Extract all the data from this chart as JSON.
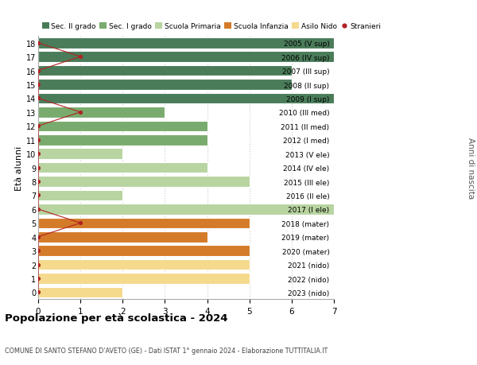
{
  "ages": [
    18,
    17,
    16,
    15,
    14,
    13,
    12,
    11,
    10,
    9,
    8,
    7,
    6,
    5,
    4,
    3,
    2,
    1,
    0
  ],
  "right_labels": [
    "2005 (V sup)",
    "2006 (IV sup)",
    "2007 (III sup)",
    "2008 (II sup)",
    "2009 (I sup)",
    "2010 (III med)",
    "2011 (II med)",
    "2012 (I med)",
    "2013 (V ele)",
    "2014 (IV ele)",
    "2015 (III ele)",
    "2016 (II ele)",
    "2017 (I ele)",
    "2018 (mater)",
    "2019 (mater)",
    "2020 (mater)",
    "2021 (nido)",
    "2022 (nido)",
    "2023 (nido)"
  ],
  "bar_values": [
    7,
    7,
    6,
    6,
    7,
    3,
    4,
    4,
    2,
    4,
    5,
    2,
    7,
    5,
    4,
    5,
    5,
    5,
    2
  ],
  "bar_colors": [
    "#4a7c59",
    "#4a7c59",
    "#4a7c59",
    "#4a7c59",
    "#4a7c59",
    "#7aab6e",
    "#7aab6e",
    "#7aab6e",
    "#b8d4a0",
    "#b8d4a0",
    "#b8d4a0",
    "#b8d4a0",
    "#b8d4a0",
    "#d47b2a",
    "#d47b2a",
    "#d47b2a",
    "#f5d98c",
    "#f5d98c",
    "#f5d98c"
  ],
  "stranieri_values": [
    0,
    1,
    0,
    0,
    0,
    1,
    0,
    0,
    0,
    0,
    0,
    0,
    0,
    1,
    0,
    0,
    0,
    0,
    0
  ],
  "legend_labels": [
    "Sec. II grado",
    "Sec. I grado",
    "Scuola Primaria",
    "Scuola Infanzia",
    "Asilo Nido",
    "Stranieri"
  ],
  "legend_colors": [
    "#4a7c59",
    "#7aab6e",
    "#b8d4a0",
    "#d47b2a",
    "#f5d98c",
    "#b22222"
  ],
  "title": "Popolazione per età scolastica - 2024",
  "subtitle": "COMUNE DI SANTO STEFANO D'AVETO (GE) - Dati ISTAT 1° gennaio 2024 - Elaborazione TUTTITALIA.IT",
  "ylabel_left": "Età alunni",
  "ylabel_right": "Anni di nascita",
  "xlim": [
    0,
    7
  ],
  "ylim": [
    -0.5,
    18.5
  ],
  "bg_color": "#ffffff",
  "grid_color": "#cccccc",
  "bar_height": 0.78,
  "stranieri_color": "#b22222"
}
